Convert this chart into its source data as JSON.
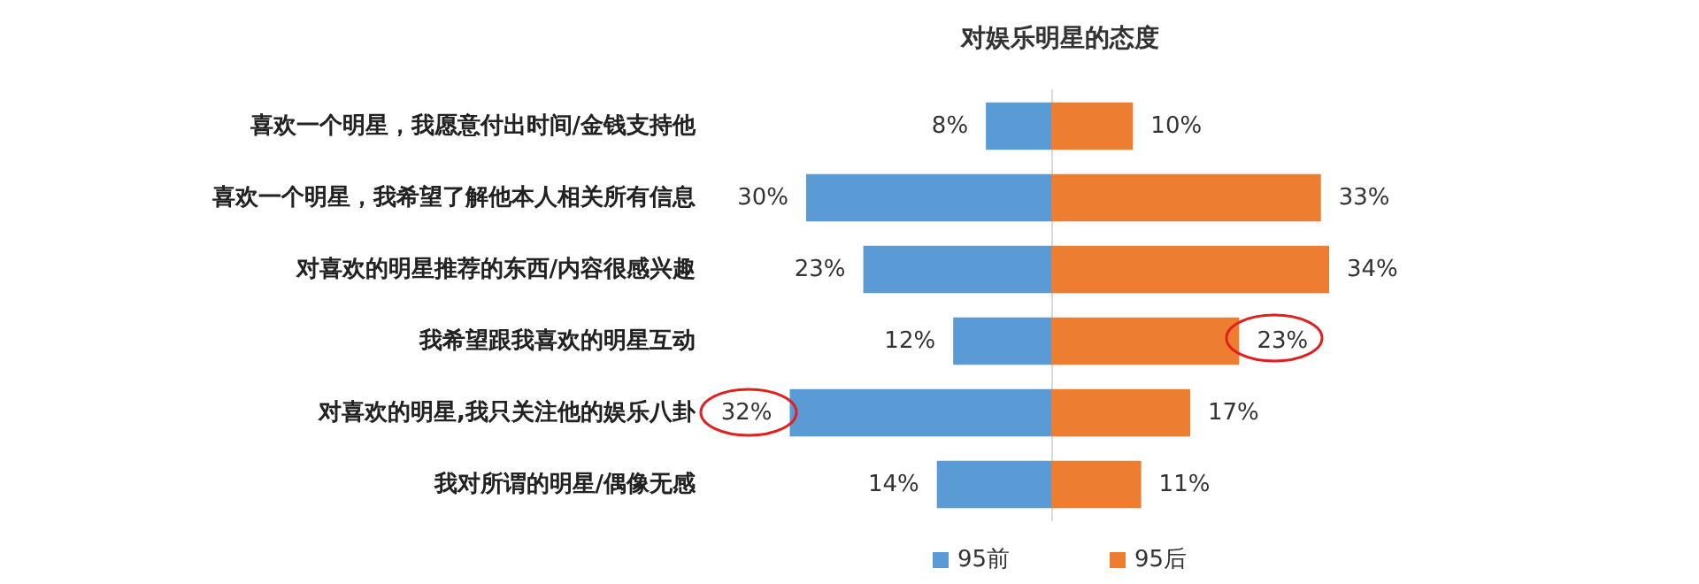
{
  "chart_data": [
    {
      "type": "bar",
      "orientation": "horizontal",
      "title": "对娱乐明星的态度",
      "categories": [
        "喜欢一个明星，我愿意付出时间/金钱支持他",
        "喜欢一个明星，我希望了解他本人相关所有信息",
        "对喜欢的明星推荐的东西/内容很感兴趣",
        "我希望跟我喜欢的明星互动",
        "对喜欢的明星,我只关注他的娱乐八卦",
        "我对所谓的明星/偶像无感"
      ],
      "series": [
        {
          "name": "95前",
          "color": "#5b9bd5",
          "values": [
            8,
            30,
            23,
            12,
            32,
            14
          ],
          "value_labels": [
            "8%",
            "30%",
            "23%",
            "12%",
            "32%",
            "14%"
          ]
        }
      ],
      "tick_labels": "y",
      "grid": false,
      "legend": "bottom"
    },
    {
      "type": "bar",
      "orientation": "horizontal",
      "categories": [
        null,
        null,
        null,
        null,
        null,
        null
      ],
      "series": [
        {
          "name": "95后",
          "color": "#ed7d31",
          "values": [
            10,
            33,
            34,
            23,
            17,
            11
          ],
          "value_labels": [
            "10%",
            "33%",
            "34%",
            "23%",
            "17%",
            "11%"
          ]
        }
      ],
      "tick_labels": false,
      "grid": false,
      "legend": "bottom"
    }
  ]
}
